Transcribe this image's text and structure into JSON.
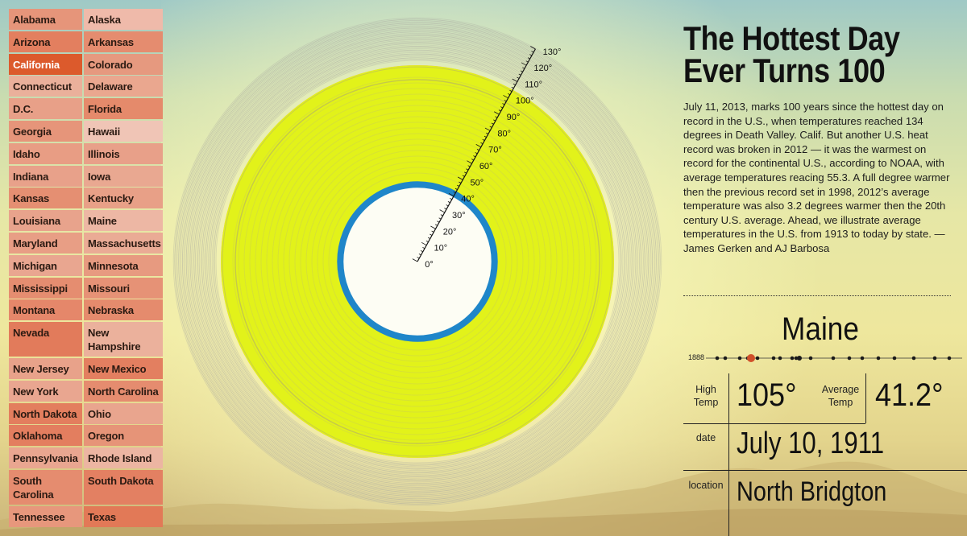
{
  "article": {
    "headline_line1": "The Hottest Day",
    "headline_line2": "Ever Turns 100",
    "intro": "July 11, 2013, marks 100 years since the hottest day on record in the U.S., when temperatures reached 134 degrees in Death Valley. Calif. But another U.S. heat record was broken in 2012 — it was the warmest on record for the continental U.S., according to NOAA, with average temperatures reacing 55.3. A full degree warmer then the previous record set in 1998, 2012’s average temperature was also 3.2 degrees warmer then the 20th century U.S. average. Ahead, we illustrate average temperatures in the U.S. from 1913 to today by state. — James Gerken and AJ Barbosa"
  },
  "states": [
    {
      "name": "Alabama",
      "color": "#e6957a"
    },
    {
      "name": "Alaska",
      "color": "#efbaaa"
    },
    {
      "name": "Arizona",
      "color": "#e37f5f"
    },
    {
      "name": "Arkansas",
      "color": "#e58c6f"
    },
    {
      "name": "California",
      "color": "#dc5a2c",
      "selected": true
    },
    {
      "name": "Colorado",
      "color": "#e6997f"
    },
    {
      "name": "Connecticut",
      "color": "#eab09b"
    },
    {
      "name": "Delaware",
      "color": "#eaa78f"
    },
    {
      "name": "D.C.",
      "color": "#e8a088"
    },
    {
      "name": "Florida",
      "color": "#e58a6b"
    },
    {
      "name": "Georgia",
      "color": "#e6957a"
    },
    {
      "name": "Hawaii",
      "color": "#f0c5b6"
    },
    {
      "name": "Idaho",
      "color": "#e89d84"
    },
    {
      "name": "Illinois",
      "color": "#e8a089"
    },
    {
      "name": "Indiana",
      "color": "#e8a18a"
    },
    {
      "name": "Iowa",
      "color": "#e9a891"
    },
    {
      "name": "Kansas",
      "color": "#e58f72"
    },
    {
      "name": "Kentucky",
      "color": "#e8a087"
    },
    {
      "name": "Louisiana",
      "color": "#e8a38c"
    },
    {
      "name": "Maine",
      "color": "#edb7a4"
    },
    {
      "name": "Maryland",
      "color": "#e89e85"
    },
    {
      "name": "Massachusetts",
      "color": "#eaab95"
    },
    {
      "name": "Michigan",
      "color": "#e9a690"
    },
    {
      "name": "Minnesota",
      "color": "#e79a80"
    },
    {
      "name": "Mississippi",
      "color": "#e58d70"
    },
    {
      "name": "Missouri",
      "color": "#e69276"
    },
    {
      "name": "Montana",
      "color": "#e5876a"
    },
    {
      "name": "Nebraska",
      "color": "#e58b6d"
    },
    {
      "name": "Nevada",
      "color": "#e27b5b"
    },
    {
      "name": "New Hampshire",
      "color": "#ebb19c"
    },
    {
      "name": "New Jersey",
      "color": "#e8a28a"
    },
    {
      "name": "New Mexico",
      "color": "#e37f60"
    },
    {
      "name": "New York",
      "color": "#e9a690"
    },
    {
      "name": "North Carolina",
      "color": "#e58c6f"
    },
    {
      "name": "North Dakota",
      "color": "#e37e5e"
    },
    {
      "name": "Ohio",
      "color": "#e9a58e"
    },
    {
      "name": "Oklahoma",
      "color": "#e37e5f"
    },
    {
      "name": "Oregon",
      "color": "#e69478"
    },
    {
      "name": "Pennsylvania",
      "color": "#e9a690"
    },
    {
      "name": "Rhode Island",
      "color": "#ecb5a2"
    },
    {
      "name": "South Carolina",
      "color": "#e58c6f"
    },
    {
      "name": "South Dakota",
      "color": "#e38062"
    },
    {
      "name": "Tennessee",
      "color": "#e7977c"
    },
    {
      "name": "Texas",
      "color": "#e27957"
    }
  ],
  "chart_data": {
    "type": "radial",
    "scale_labels": [
      "0°",
      "10°",
      "20°",
      "30°",
      "40°",
      "50°",
      "60°",
      "70°",
      "80°",
      "90°",
      "100°",
      "110°",
      "120°",
      "130°"
    ],
    "scale_range": [
      0,
      130
    ],
    "high_temp_ring": 105,
    "average_temp_ring": 41.2,
    "colors": {
      "average_ring": "#1f86c9",
      "high_fill": "#e2f21a",
      "record_ring": "#e9a08c",
      "history_rings": "#a9a9a0"
    }
  },
  "detail": {
    "state": "Maine",
    "timeline_start_year": "1888",
    "high_label": "High Temp",
    "high_value": "105°",
    "average_label": "Average Temp",
    "average_value": "41.2°",
    "date_label": "date",
    "date_value": "July 10, 1911",
    "location_label": "location",
    "location_value": "North Bridgton",
    "colors": {
      "highlight_dot": "#d0502a",
      "dot": "#1a1a1a"
    }
  }
}
